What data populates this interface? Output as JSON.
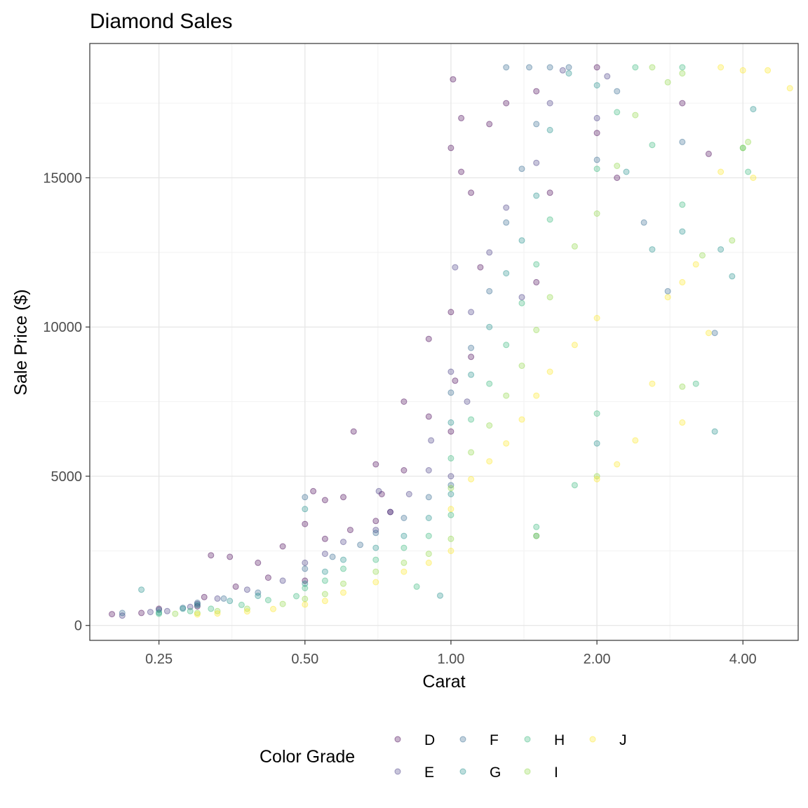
{
  "chart_data": {
    "type": "scatter",
    "title": "Diamond Sales",
    "xlabel": "Carat",
    "ylabel": "Sale Price ($)",
    "x_scale": "log2",
    "xlim": [
      0.18,
      5.2
    ],
    "ylim": [
      -500,
      19500
    ],
    "x_ticks": [
      0.25,
      0.5,
      1.0,
      2.0,
      4.0
    ],
    "x_tick_labels": [
      "0.25",
      "0.50",
      "1.00",
      "2.00",
      "4.00"
    ],
    "y_ticks": [
      0,
      5000,
      10000,
      15000
    ],
    "y_tick_labels": [
      "0",
      "5000",
      "10000",
      "15000"
    ],
    "grid": true,
    "point_alpha": 0.3,
    "legend": {
      "title": "Color Grade",
      "position": "bottom",
      "entries": [
        "D",
        "E",
        "F",
        "G",
        "H",
        "I",
        "J"
      ]
    },
    "series": [
      {
        "name": "D",
        "color": "#440154",
        "points": [
          [
            0.2,
            378
          ],
          [
            0.23,
            420
          ],
          [
            0.25,
            560
          ],
          [
            0.3,
            640
          ],
          [
            0.32,
            2350
          ],
          [
            0.35,
            2300
          ],
          [
            0.4,
            2100
          ],
          [
            0.45,
            2650
          ],
          [
            0.5,
            3400
          ],
          [
            0.5,
            1500
          ],
          [
            0.52,
            4500
          ],
          [
            0.55,
            4200
          ],
          [
            0.6,
            4300
          ],
          [
            0.63,
            6500
          ],
          [
            0.7,
            5400
          ],
          [
            0.7,
            3500
          ],
          [
            0.72,
            4400
          ],
          [
            0.75,
            3800
          ],
          [
            0.8,
            5200
          ],
          [
            0.8,
            7500
          ],
          [
            0.9,
            7000
          ],
          [
            0.9,
            9600
          ],
          [
            1.0,
            10500
          ],
          [
            1.0,
            16000
          ],
          [
            1.01,
            18300
          ],
          [
            1.05,
            17000
          ],
          [
            1.05,
            15200
          ],
          [
            1.1,
            14500
          ],
          [
            1.15,
            12000
          ],
          [
            1.2,
            16800
          ],
          [
            1.3,
            17500
          ],
          [
            1.5,
            17900
          ],
          [
            1.5,
            11500
          ],
          [
            1.6,
            14500
          ],
          [
            2.0,
            18700
          ],
          [
            2.0,
            16500
          ],
          [
            2.2,
            15000
          ],
          [
            3.0,
            17500
          ],
          [
            3.4,
            15800
          ],
          [
            0.31,
            950
          ],
          [
            0.36,
            1300
          ],
          [
            0.42,
            1600
          ],
          [
            0.55,
            2900
          ],
          [
            0.62,
            3200
          ],
          [
            1.0,
            6500
          ],
          [
            1.02,
            8200
          ],
          [
            1.1,
            9000
          ]
        ]
      },
      {
        "name": "E",
        "color": "#443A83",
        "points": [
          [
            0.21,
            330
          ],
          [
            0.24,
            450
          ],
          [
            0.26,
            480
          ],
          [
            0.29,
            620
          ],
          [
            0.3,
            720
          ],
          [
            0.33,
            900
          ],
          [
            0.38,
            1200
          ],
          [
            0.45,
            1500
          ],
          [
            0.5,
            2100
          ],
          [
            0.55,
            2400
          ],
          [
            0.6,
            2800
          ],
          [
            0.7,
            3200
          ],
          [
            0.75,
            3800
          ],
          [
            0.82,
            4400
          ],
          [
            0.9,
            5200
          ],
          [
            1.0,
            5000
          ],
          [
            1.0,
            8500
          ],
          [
            1.1,
            10500
          ],
          [
            1.2,
            12500
          ],
          [
            1.3,
            14000
          ],
          [
            1.5,
            15500
          ],
          [
            1.6,
            17500
          ],
          [
            1.7,
            18600
          ],
          [
            2.0,
            17000
          ],
          [
            2.1,
            18400
          ],
          [
            1.02,
            12000
          ],
          [
            1.08,
            7500
          ],
          [
            1.4,
            11000
          ],
          [
            0.71,
            4500
          ],
          [
            0.91,
            6200
          ]
        ]
      },
      {
        "name": "F",
        "color": "#31688E",
        "points": [
          [
            0.21,
            420
          ],
          [
            0.25,
            520
          ],
          [
            0.28,
            590
          ],
          [
            0.3,
            760
          ],
          [
            0.34,
            900
          ],
          [
            0.4,
            1100
          ],
          [
            0.5,
            1900
          ],
          [
            0.5,
            4300
          ],
          [
            0.57,
            2300
          ],
          [
            0.65,
            2700
          ],
          [
            0.7,
            3100
          ],
          [
            0.8,
            3600
          ],
          [
            0.9,
            4300
          ],
          [
            1.0,
            4700
          ],
          [
            1.0,
            7800
          ],
          [
            1.1,
            9300
          ],
          [
            1.2,
            11200
          ],
          [
            1.3,
            13500
          ],
          [
            1.4,
            15300
          ],
          [
            1.5,
            16800
          ],
          [
            1.6,
            18700
          ],
          [
            1.75,
            18700
          ],
          [
            2.0,
            15600
          ],
          [
            2.2,
            17900
          ],
          [
            3.0,
            16200
          ],
          [
            3.5,
            9800
          ],
          [
            1.3,
            18700
          ],
          [
            1.45,
            18700
          ],
          [
            2.5,
            13500
          ],
          [
            2.8,
            11200
          ]
        ]
      },
      {
        "name": "G",
        "color": "#21908C",
        "points": [
          [
            0.23,
            1200
          ],
          [
            0.25,
            430
          ],
          [
            0.28,
            560
          ],
          [
            0.3,
            680
          ],
          [
            0.35,
            820
          ],
          [
            0.4,
            990
          ],
          [
            0.5,
            1400
          ],
          [
            0.5,
            3900
          ],
          [
            0.55,
            1800
          ],
          [
            0.6,
            2200
          ],
          [
            0.7,
            2600
          ],
          [
            0.8,
            3000
          ],
          [
            0.9,
            3600
          ],
          [
            0.95,
            1000
          ],
          [
            1.0,
            4400
          ],
          [
            1.0,
            6800
          ],
          [
            1.1,
            8400
          ],
          [
            1.2,
            10000
          ],
          [
            1.3,
            11800
          ],
          [
            1.4,
            12900
          ],
          [
            1.5,
            14400
          ],
          [
            1.5,
            3000
          ],
          [
            1.6,
            16600
          ],
          [
            1.75,
            18500
          ],
          [
            2.0,
            18100
          ],
          [
            2.0,
            6100
          ],
          [
            2.3,
            15200
          ],
          [
            2.6,
            12600
          ],
          [
            3.0,
            13200
          ],
          [
            3.5,
            6500
          ],
          [
            3.6,
            12600
          ],
          [
            3.8,
            11700
          ],
          [
            4.2,
            17300
          ]
        ]
      },
      {
        "name": "H",
        "color": "#35B779",
        "points": [
          [
            0.25,
            390
          ],
          [
            0.29,
            480
          ],
          [
            0.32,
            560
          ],
          [
            0.37,
            690
          ],
          [
            0.42,
            850
          ],
          [
            0.48,
            980
          ],
          [
            0.5,
            1250
          ],
          [
            0.55,
            1500
          ],
          [
            0.6,
            1900
          ],
          [
            0.7,
            2200
          ],
          [
            0.8,
            2600
          ],
          [
            0.85,
            1300
          ],
          [
            0.9,
            3000
          ],
          [
            1.0,
            3700
          ],
          [
            1.0,
            5600
          ],
          [
            1.1,
            6900
          ],
          [
            1.2,
            8100
          ],
          [
            1.3,
            9400
          ],
          [
            1.4,
            10800
          ],
          [
            1.5,
            12100
          ],
          [
            1.5,
            3300
          ],
          [
            1.6,
            13600
          ],
          [
            1.8,
            4700
          ],
          [
            2.0,
            15300
          ],
          [
            2.0,
            7100
          ],
          [
            2.2,
            17200
          ],
          [
            2.4,
            18700
          ],
          [
            2.6,
            16100
          ],
          [
            3.0,
            14100
          ],
          [
            3.0,
            18700
          ],
          [
            3.2,
            8100
          ],
          [
            4.0,
            16000
          ],
          [
            4.1,
            15200
          ]
        ]
      },
      {
        "name": "I",
        "color": "#8FD744",
        "points": [
          [
            0.27,
            390
          ],
          [
            0.3,
            420
          ],
          [
            0.33,
            480
          ],
          [
            0.38,
            560
          ],
          [
            0.45,
            720
          ],
          [
            0.5,
            890
          ],
          [
            0.55,
            1050
          ],
          [
            0.6,
            1400
          ],
          [
            0.7,
            1800
          ],
          [
            0.8,
            2100
          ],
          [
            0.9,
            2400
          ],
          [
            1.0,
            2900
          ],
          [
            1.0,
            4600
          ],
          [
            1.1,
            5800
          ],
          [
            1.2,
            6700
          ],
          [
            1.3,
            7700
          ],
          [
            1.4,
            8700
          ],
          [
            1.5,
            9900
          ],
          [
            1.5,
            3000
          ],
          [
            1.6,
            11000
          ],
          [
            1.8,
            12700
          ],
          [
            2.0,
            13800
          ],
          [
            2.0,
            5000
          ],
          [
            2.2,
            15400
          ],
          [
            2.4,
            17100
          ],
          [
            2.6,
            18700
          ],
          [
            2.8,
            18200
          ],
          [
            3.0,
            18500
          ],
          [
            3.0,
            8000
          ],
          [
            3.3,
            12400
          ],
          [
            3.8,
            12900
          ],
          [
            4.0,
            16000
          ],
          [
            4.1,
            16200
          ]
        ]
      },
      {
        "name": "J",
        "color": "#FDE725",
        "points": [
          [
            0.3,
            370
          ],
          [
            0.33,
            400
          ],
          [
            0.38,
            470
          ],
          [
            0.43,
            550
          ],
          [
            0.5,
            700
          ],
          [
            0.55,
            820
          ],
          [
            0.6,
            1100
          ],
          [
            0.7,
            1450
          ],
          [
            0.8,
            1800
          ],
          [
            0.9,
            2100
          ],
          [
            1.0,
            2500
          ],
          [
            1.0,
            3900
          ],
          [
            1.1,
            4900
          ],
          [
            1.2,
            5500
          ],
          [
            1.3,
            6100
          ],
          [
            1.4,
            6900
          ],
          [
            1.5,
            7700
          ],
          [
            1.6,
            8500
          ],
          [
            1.8,
            9400
          ],
          [
            2.0,
            10300
          ],
          [
            2.0,
            4900
          ],
          [
            2.2,
            5400
          ],
          [
            2.4,
            6200
          ],
          [
            2.6,
            8100
          ],
          [
            2.8,
            11000
          ],
          [
            3.0,
            6800
          ],
          [
            3.0,
            11500
          ],
          [
            3.2,
            12100
          ],
          [
            3.4,
            9800
          ],
          [
            3.6,
            18700
          ],
          [
            3.6,
            15200
          ],
          [
            4.0,
            18600
          ],
          [
            4.2,
            15000
          ],
          [
            4.5,
            18600
          ],
          [
            5.0,
            18000
          ]
        ]
      }
    ]
  }
}
